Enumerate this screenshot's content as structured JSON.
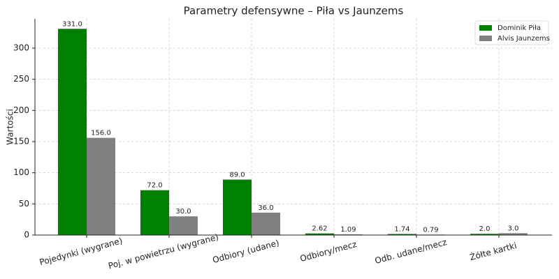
{
  "chart_data": {
    "type": "bar",
    "title": "Parametry defensywne – Piła vs Jaunzems",
    "y_label": "Wartości",
    "categories": [
      "Pojedynki (wygrane)",
      "Poj. w powietrzu (wygrane)",
      "Odbiory (udane)",
      "Odbiory/mecz",
      "Odb. udane/mecz",
      "Żółte kartki"
    ],
    "series": [
      {
        "name": "Dominik Piła",
        "color": "#008000",
        "values": [
          331,
          72,
          89,
          2.62,
          1.74,
          2
        ],
        "value_labels": [
          "331.0",
          "72.0",
          "89.0",
          "2.62",
          "1.74",
          "2.0"
        ]
      },
      {
        "name": "Alvis Jaunzems",
        "color": "#808080",
        "values": [
          156,
          30,
          36,
          1.09,
          0.79,
          3
        ],
        "value_labels": [
          "156.0",
          "30.0",
          "36.0",
          "1.09",
          "0.79",
          "3.0"
        ]
      }
    ],
    "ylim": [
      0,
      347
    ],
    "yticks": [
      0,
      50,
      100,
      150,
      200,
      250,
      300
    ],
    "grid": true,
    "legend": "upper right"
  }
}
